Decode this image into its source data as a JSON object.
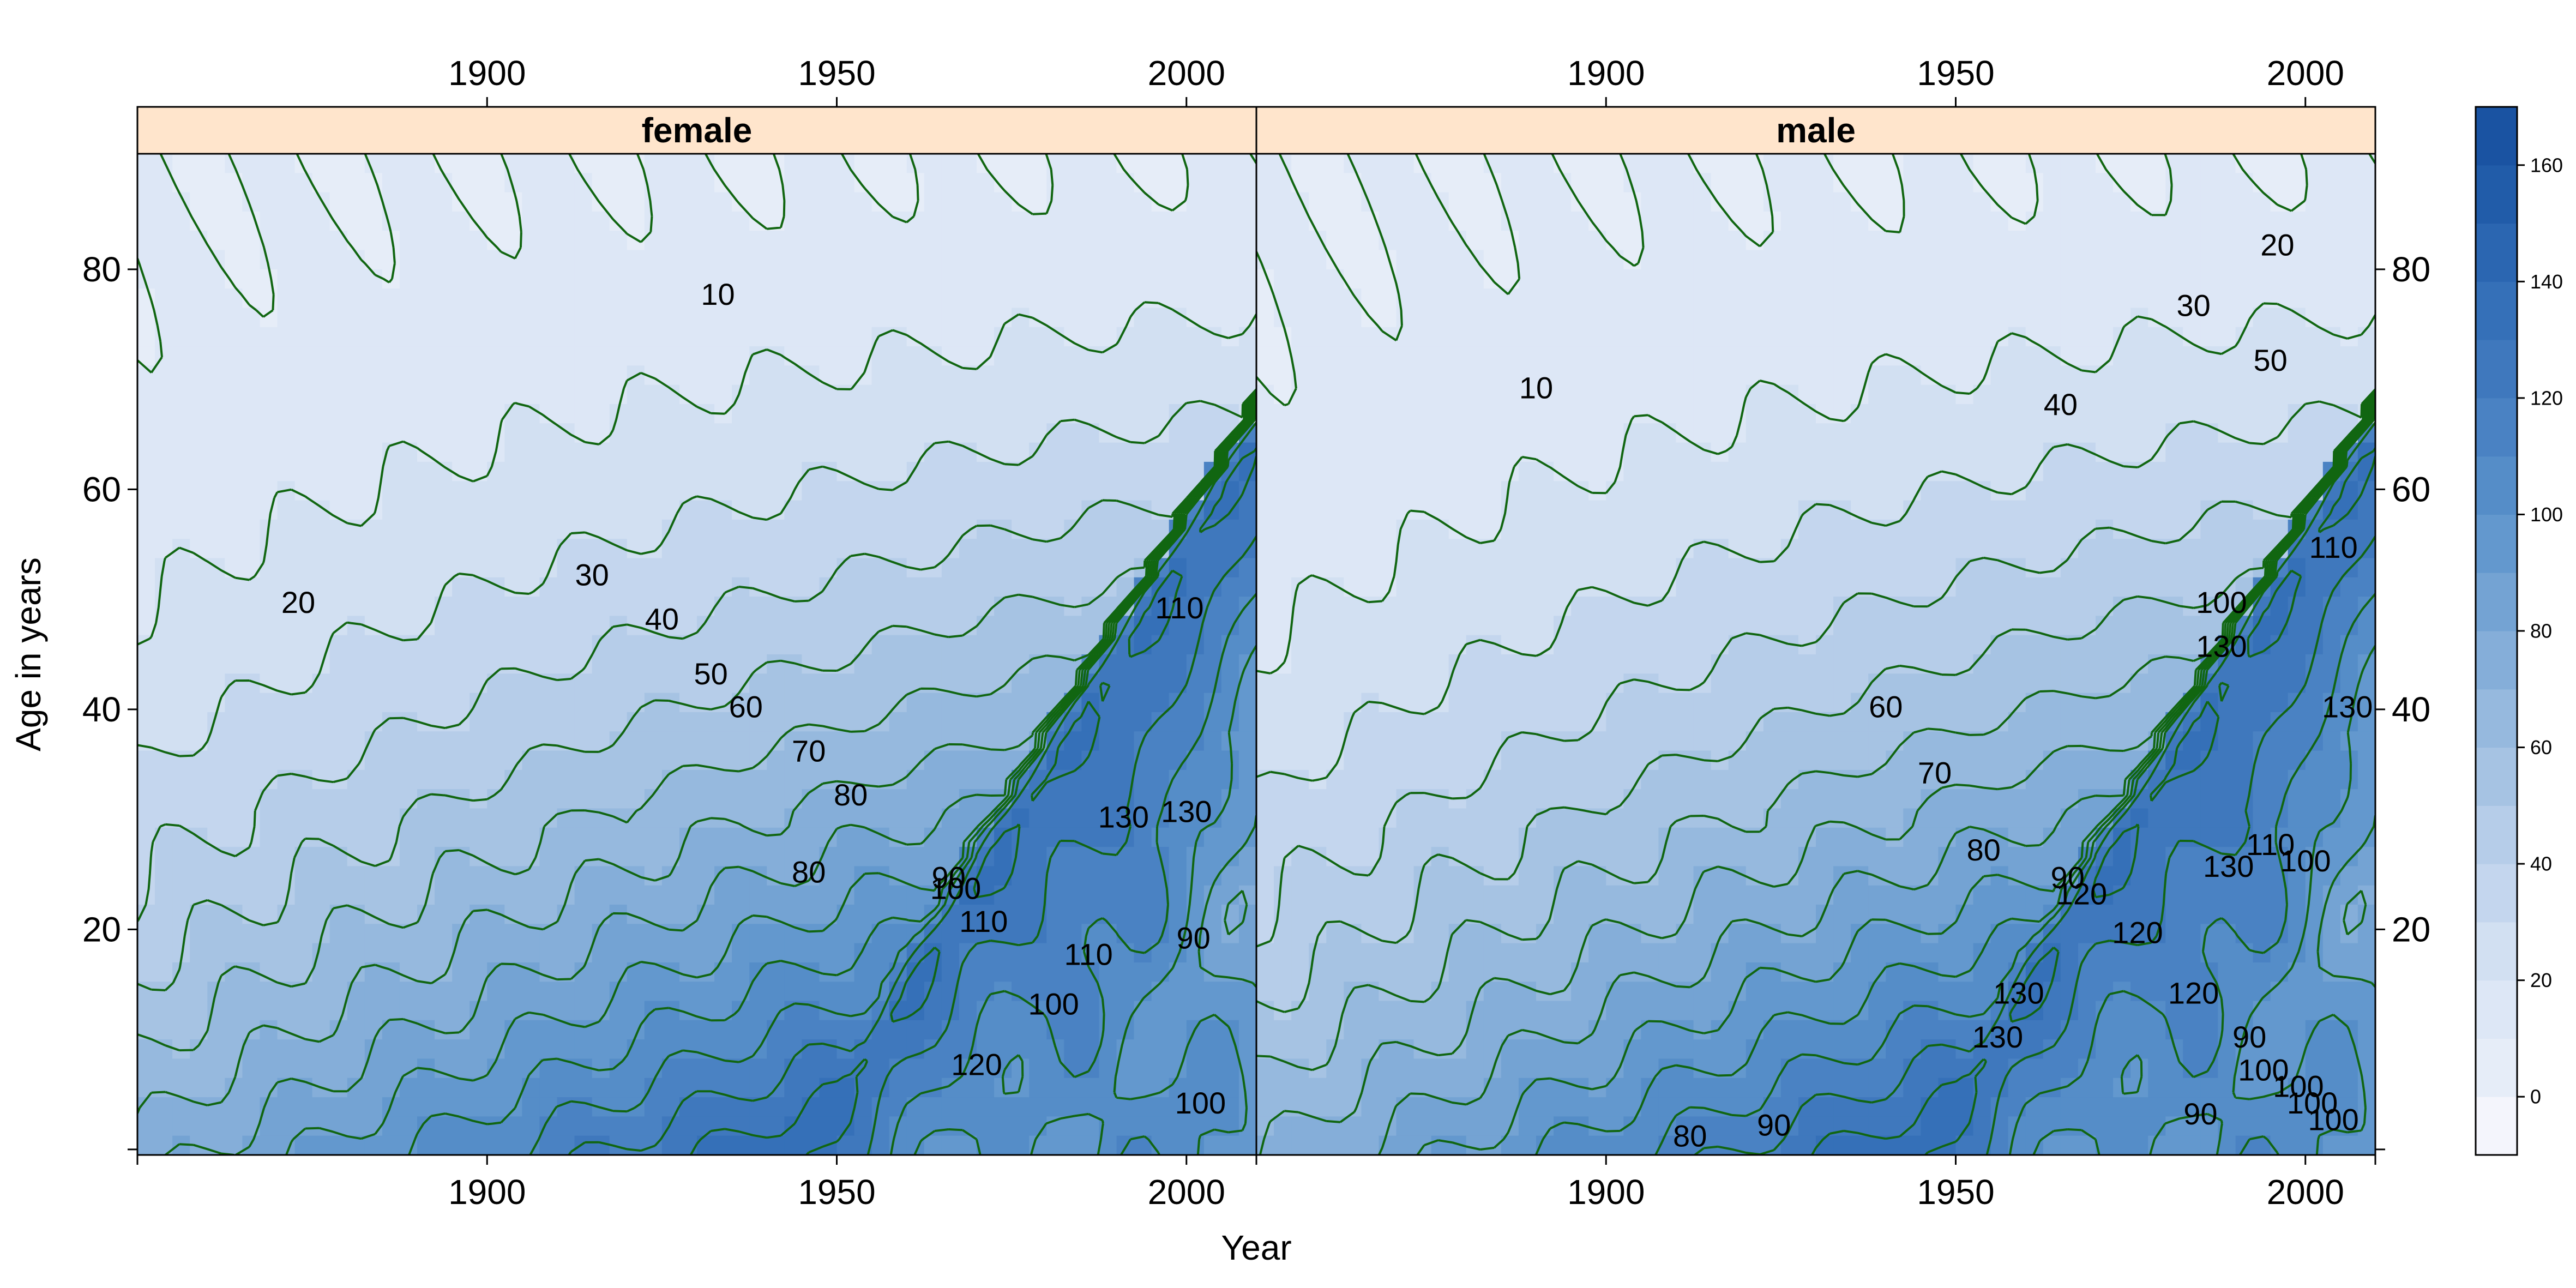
{
  "chart_data": {
    "type": "contour",
    "xlabel": "Year",
    "ylabel": "Age in years",
    "x_ticks": [
      1900,
      1950,
      2000
    ],
    "y_ticks": [
      20,
      40,
      60,
      80
    ],
    "xlim": [
      1850,
      2010
    ],
    "ylim": [
      -0.5,
      90.5
    ],
    "colorbar": {
      "ticks": [
        0,
        20,
        40,
        60,
        80,
        100,
        120,
        140,
        160
      ],
      "range": [
        -10,
        170
      ],
      "levels": [
        -10,
        0,
        10,
        20,
        30,
        40,
        50,
        60,
        70,
        80,
        90,
        100,
        110,
        120,
        130,
        140,
        150,
        160,
        170
      ],
      "colors": [
        "#f4f5fc",
        "#e6edf8",
        "#dde7f6",
        "#d2e0f2",
        "#c4d6ee",
        "#b6cde9",
        "#a6c3e3",
        "#96b9de",
        "#85aed9",
        "#74a3d3",
        "#6398ce",
        "#558dc8",
        "#4a82c3",
        "#3f78bd",
        "#3570b8",
        "#2b66b1",
        "#215ca9",
        "#1a53a2"
      ]
    },
    "panels": [
      {
        "strip": "female",
        "contour_labels": [
          {
            "text": "10",
            "x": 1933,
            "y": 77.5
          },
          {
            "text": "20",
            "x": 1873,
            "y": 49.5
          },
          {
            "text": "30",
            "x": 1915,
            "y": 52
          },
          {
            "text": "40",
            "x": 1925,
            "y": 48
          },
          {
            "text": "50",
            "x": 1932,
            "y": 43
          },
          {
            "text": "60",
            "x": 1937,
            "y": 40
          },
          {
            "text": "70",
            "x": 1946,
            "y": 36
          },
          {
            "text": "80",
            "x": 1952,
            "y": 32
          },
          {
            "text": "80",
            "x": 1946,
            "y": 25
          },
          {
            "text": "90",
            "x": 1966,
            "y": 24.5
          },
          {
            "text": "100",
            "x": 1967,
            "y": 23.5
          },
          {
            "text": "110",
            "x": 1971,
            "y": 20.5
          },
          {
            "text": "110",
            "x": 1999,
            "y": 49
          },
          {
            "text": "130",
            "x": 1991,
            "y": 30
          },
          {
            "text": "130",
            "x": 2000,
            "y": 30.5
          },
          {
            "text": "90",
            "x": 2001,
            "y": 19
          },
          {
            "text": "110",
            "x": 1986,
            "y": 17.5
          },
          {
            "text": "100",
            "x": 1981,
            "y": 13
          },
          {
            "text": "120",
            "x": 1970,
            "y": 7.5
          },
          {
            "text": "100",
            "x": 2002,
            "y": 4
          }
        ]
      },
      {
        "strip": "male",
        "contour_labels": [
          {
            "text": "10",
            "x": 1890,
            "y": 69
          },
          {
            "text": "20",
            "x": 1996,
            "y": 82
          },
          {
            "text": "30",
            "x": 1984,
            "y": 76.5
          },
          {
            "text": "50",
            "x": 1995,
            "y": 71.5
          },
          {
            "text": "40",
            "x": 1965,
            "y": 67.5
          },
          {
            "text": "110",
            "x": 2004,
            "y": 54.5
          },
          {
            "text": "100",
            "x": 1988,
            "y": 49.5
          },
          {
            "text": "130",
            "x": 1988,
            "y": 45.5
          },
          {
            "text": "130",
            "x": 2006,
            "y": 40
          },
          {
            "text": "60",
            "x": 1940,
            "y": 40
          },
          {
            "text": "70",
            "x": 1947,
            "y": 34
          },
          {
            "text": "80",
            "x": 1954,
            "y": 27
          },
          {
            "text": "90",
            "x": 1966,
            "y": 24.5
          },
          {
            "text": "120",
            "x": 1968,
            "y": 23
          },
          {
            "text": "120",
            "x": 1976,
            "y": 19.5
          },
          {
            "text": "110",
            "x": 1995,
            "y": 27.5
          },
          {
            "text": "130",
            "x": 1989,
            "y": 25.5
          },
          {
            "text": "100",
            "x": 2000,
            "y": 26
          },
          {
            "text": "120",
            "x": 1984,
            "y": 14
          },
          {
            "text": "130",
            "x": 1959,
            "y": 14
          },
          {
            "text": "130",
            "x": 1956,
            "y": 10
          },
          {
            "text": "90",
            "x": 1992,
            "y": 10
          },
          {
            "text": "100",
            "x": 1994,
            "y": 7
          },
          {
            "text": "100",
            "x": 1999,
            "y": 5.5
          },
          {
            "text": "100",
            "x": 2001,
            "y": 4
          },
          {
            "text": "100",
            "x": 2004,
            "y": 2.5
          },
          {
            "text": "90",
            "x": 1985,
            "y": 3
          },
          {
            "text": "80",
            "x": 1912,
            "y": 1
          },
          {
            "text": "90",
            "x": 1924,
            "y": 2
          }
        ]
      }
    ]
  }
}
